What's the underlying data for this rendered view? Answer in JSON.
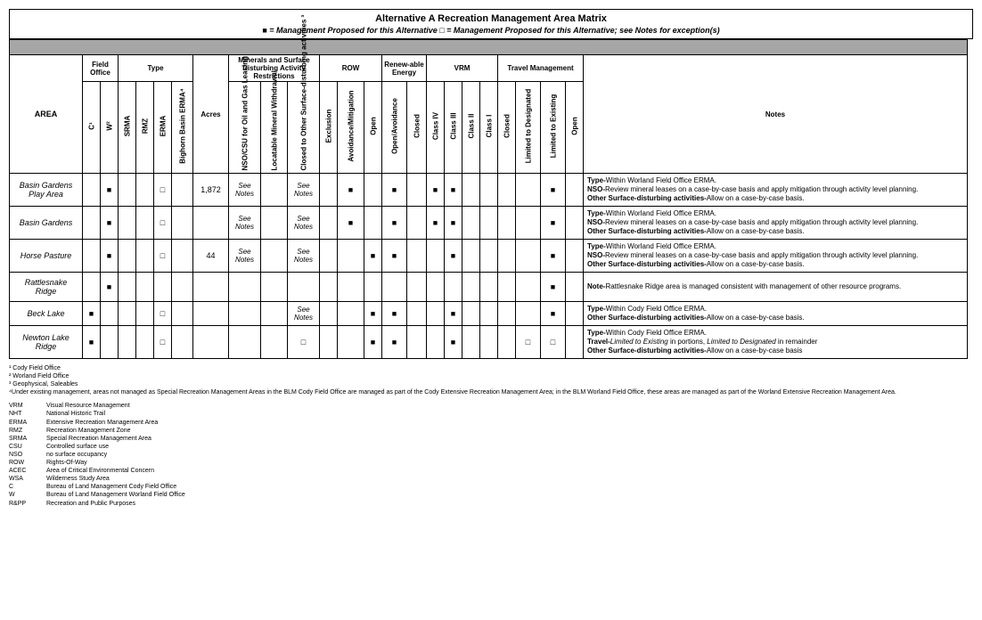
{
  "title": "Alternative A Recreation Management Area Matrix",
  "legend": "■ = Management Proposed for this Alternative □ = Management Proposed for this Alternative; see Notes for exception(s)",
  "groupHeaders": {
    "area": "AREA",
    "fieldOffice": "Field Office",
    "type": "Type",
    "acres": "Acres",
    "minerals": "Minerals and Surface Disturbing Activity Restrictions",
    "row": "ROW",
    "renew": "Renew-able Energy",
    "vrm": "VRM",
    "travel": "Travel Management",
    "notes": "Notes"
  },
  "subHeaders": {
    "c": "C¹",
    "w": "W²",
    "srma": "SRMA",
    "rmz": "RMZ",
    "erma": "ERMA",
    "bighorn": "Bighorn Basin ERMA⁴",
    "nso": "NSO/CSU for Oil and Gas Leasing",
    "locatable": "Locatable Mineral Withdrawal",
    "closedOther": "Closed to Other Surface-disturbing activities ³",
    "exclusion": "Exclusion",
    "avoid": "Avoidance/Mitigation",
    "open": "Open",
    "openAvoid": "Open/Avoidance",
    "closed": "Closed",
    "c4": "Class IV",
    "c3": "Class III",
    "c2": "Class II",
    "c1": "Class I",
    "tClosed": "Closed",
    "tDesig": "Limited to Designated",
    "tExist": "Limited to Existing",
    "tOpen": "Open"
  },
  "see": "See Notes",
  "rows": [
    {
      "area": "Basin Gardens Play Area",
      "w": "■",
      "erma": "□",
      "acres": "1,872",
      "nso": "see",
      "closedOther": "see",
      "avoid": "■",
      "openAvoid": "■",
      "c4": "■",
      "c3": "■",
      "tExist": "■",
      "notes": "<b>Type-</b>Within Worland Field Office ERMA.<br><b>NSO-</b>Review mineral leases on a case-by-case basis and apply mitigation through activity level planning.<br><b>Other Surface-disturbing activities-</b>Allow on a case-by-case basis."
    },
    {
      "area": "Basin Gardens",
      "w": "■",
      "erma": "□",
      "nso": "see",
      "closedOther": "see",
      "avoid": "■",
      "openAvoid": "■",
      "c4": "■",
      "c3": "■",
      "tExist": "■",
      "notes": "<b>Type-</b>Within Worland Field Office ERMA.<br><b>NSO-</b>Review mineral leases on a case-by-case basis and apply mitigation through activity level planning.<br><b>Other Surface-disturbing activities-</b>Allow on a case-by-case basis."
    },
    {
      "area": "Horse Pasture",
      "w": "■",
      "erma": "□",
      "acres": "44",
      "nso": "see",
      "closedOther": "see",
      "open": "■",
      "openAvoid": "■",
      "c3": "■",
      "tExist": "■",
      "notes": "<b>Type-</b>Within Worland Field Office ERMA.<br><b>NSO-</b>Review mineral leases on a case-by-case basis and apply mitigation through activity level planning.<br><b>Other Surface-disturbing activities-</b>Allow on a case-by-case basis."
    },
    {
      "area": "Rattlesnake Ridge",
      "w": "■",
      "tExist": "■",
      "notes": "<b>Note-</b>Rattlesnake Ridge area is managed consistent with management of other resource programs."
    },
    {
      "area": "Beck Lake",
      "c": "■",
      "erma": "□",
      "closedOther": "see",
      "open": "■",
      "openAvoid": "■",
      "c3": "■",
      "tExist": "■",
      "notes": "<b>Type-</b>Within Cody Field Office ERMA.<br><b>Other Surface-disturbing activities-</b>Allow on a case-by-case basis."
    },
    {
      "area": "Newton Lake Ridge",
      "c": "■",
      "erma": "□",
      "closedOther": "□",
      "open": "■",
      "openAvoid": "■",
      "c3": "■",
      "tDesig": "□",
      "tExist": "□",
      "notes": "<b>Type-</b>Within Cody Field Office ERMA.<br><b>Travel-</b><i>Limited to Existing</i> in portions, <i>Limited to Designated</i> in remainder<br><b>Other Surface-disturbing activities-</b>Allow on a case-by-case basis"
    }
  ],
  "footnotes": [
    "¹ Cody Field Office",
    "² Worland Field Office",
    "³ Geophysical, Saleables",
    "⁴Under existing management, areas not managed as Special Recreation Management Areas in the BLM Cody Field Office are managed as part of the Cody Extensive Recreation Management Area; in the BLM Worland Field Office, these areas are managed as part of the Worland Extensive Recreation Management Area."
  ],
  "abbr": [
    [
      "VRM",
      "Visual Resource Management"
    ],
    [
      "NHT",
      "National Historic Trail"
    ],
    [
      "ERMA",
      "Extensive Recreation Management Area"
    ],
    [
      "RMZ",
      "Recreation Management Zone"
    ],
    [
      "SRMA",
      "Special Recreation Management Area"
    ],
    [
      "CSU",
      "Controlled surface use"
    ],
    [
      "NSO",
      "no surface occupancy"
    ],
    [
      "ROW",
      "Rights-Of-Way"
    ],
    [
      "ACEC",
      "Area of Critical Environmental Concern"
    ],
    [
      "WSA",
      "Wilderness Study Area"
    ],
    [
      "C",
      "Bureau of Land Management Cody Field Office"
    ],
    [
      "W",
      "Bureau of Land Management Worland Field Office"
    ],
    [
      "R&PP",
      "Recreation and Public Purposes"
    ]
  ]
}
